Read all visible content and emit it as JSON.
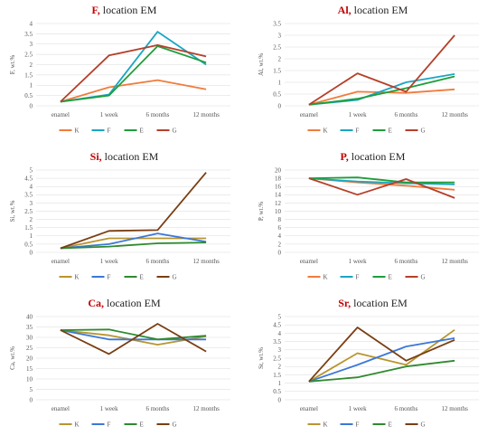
{
  "chart_data": [
    {
      "type": "line",
      "title_element": "F,",
      "title_rest": " location EM",
      "ylabel": "F, wt.%",
      "categories": [
        "enamel",
        "1 week",
        "6 months",
        "12 months"
      ],
      "ylim": [
        0,
        4
      ],
      "yticks": [
        "0",
        "0.5",
        "1",
        "1.5",
        "2",
        "2.5",
        "3",
        "3.5",
        "4"
      ],
      "series": [
        {
          "name": "K",
          "color": "#f07c3c",
          "values": [
            0.2,
            0.9,
            1.25,
            0.8
          ]
        },
        {
          "name": "F",
          "color": "#1aa6c4",
          "values": [
            0.2,
            0.55,
            3.6,
            2.0
          ]
        },
        {
          "name": "E",
          "color": "#1e9e3a",
          "values": [
            0.2,
            0.5,
            2.9,
            2.1
          ]
        },
        {
          "name": "G",
          "color": "#b5402a",
          "values": [
            0.2,
            2.45,
            2.95,
            2.4
          ]
        }
      ]
    },
    {
      "type": "line",
      "title_element": "Al,",
      "title_rest": " location EM",
      "ylabel": "Al, wt.%",
      "categories": [
        "enamel",
        "1 week",
        "6 months",
        "12 months"
      ],
      "ylim": [
        0,
        3.5
      ],
      "yticks": [
        "0",
        "0.5",
        "1",
        "1.5",
        "2",
        "2.5",
        "3",
        "3.5"
      ],
      "series": [
        {
          "name": "K",
          "color": "#f07c3c",
          "values": [
            0.05,
            0.6,
            0.55,
            0.7
          ]
        },
        {
          "name": "F",
          "color": "#1aa6c4",
          "values": [
            0.05,
            0.25,
            1.0,
            1.35
          ]
        },
        {
          "name": "E",
          "color": "#1e9e3a",
          "values": [
            0.05,
            0.3,
            0.75,
            1.25
          ]
        },
        {
          "name": "G",
          "color": "#b5402a",
          "values": [
            0.05,
            1.38,
            0.6,
            3.0
          ]
        }
      ]
    },
    {
      "type": "line",
      "title_element": "Si,",
      "title_rest": " location EM",
      "ylabel": "Si, wt.%",
      "categories": [
        "enamel",
        "1 week",
        "6 months",
        "12 months"
      ],
      "ylim": [
        0,
        5
      ],
      "yticks": [
        "0",
        "0.5",
        "1",
        "1.5",
        "2",
        "2.5",
        "3",
        "3.5",
        "4",
        "4.5",
        "5"
      ],
      "series": [
        {
          "name": "K",
          "color": "#b8962e",
          "values": [
            0.25,
            0.85,
            0.85,
            0.85
          ]
        },
        {
          "name": "F",
          "color": "#3b78d8",
          "values": [
            0.25,
            0.5,
            1.15,
            0.65
          ]
        },
        {
          "name": "E",
          "color": "#2f8a2f",
          "values": [
            0.25,
            0.35,
            0.55,
            0.6
          ]
        },
        {
          "name": "G",
          "color": "#7a3e12",
          "values": [
            0.25,
            1.3,
            1.35,
            4.85
          ]
        }
      ]
    },
    {
      "type": "line",
      "title_element": "P,",
      "title_rest": " location EM",
      "ylabel": "P, wt.%",
      "categories": [
        "enamel",
        "1 week",
        "6 months",
        "12 months"
      ],
      "ylim": [
        0,
        20
      ],
      "yticks": [
        "0",
        "2",
        "4",
        "6",
        "8",
        "10",
        "12",
        "14",
        "16",
        "18",
        "20"
      ],
      "series": [
        {
          "name": "K",
          "color": "#f07c3c",
          "values": [
            18.0,
            17.0,
            16.2,
            15.2
          ]
        },
        {
          "name": "F",
          "color": "#1aa6c4",
          "values": [
            18.0,
            17.2,
            16.8,
            16.5
          ]
        },
        {
          "name": "E",
          "color": "#1e9e3a",
          "values": [
            18.0,
            18.2,
            17.0,
            17.0
          ]
        },
        {
          "name": "G",
          "color": "#b5402a",
          "values": [
            18.0,
            14.0,
            17.8,
            13.2
          ]
        }
      ]
    },
    {
      "type": "line",
      "title_element": "Ca,",
      "title_rest": " location EM",
      "ylabel": "Ca, wt.%",
      "categories": [
        "enamel",
        "1 week",
        "6 months",
        "12 months"
      ],
      "ylim": [
        0,
        40
      ],
      "yticks": [
        "0",
        "5",
        "10",
        "15",
        "20",
        "25",
        "30",
        "35",
        "40"
      ],
      "series": [
        {
          "name": "K",
          "color": "#b8962e",
          "values": [
            33.5,
            31.0,
            26.5,
            30.5
          ]
        },
        {
          "name": "F",
          "color": "#3b78d8",
          "values": [
            33.5,
            29.0,
            29.0,
            29.0
          ]
        },
        {
          "name": "E",
          "color": "#2f8a2f",
          "values": [
            33.5,
            33.8,
            29.0,
            30.8
          ]
        },
        {
          "name": "G",
          "color": "#7a3e12",
          "values": [
            33.5,
            22.0,
            36.5,
            23.2
          ]
        }
      ]
    },
    {
      "type": "line",
      "title_element": "Sr,",
      "title_rest": " location EM",
      "ylabel": "Sr, wt.%",
      "categories": [
        "enamel",
        "1 week",
        "6 months",
        "12 months"
      ],
      "ylim": [
        0,
        5
      ],
      "yticks": [
        "0",
        "0.5",
        "1",
        "1.5",
        "2",
        "2.5",
        "3",
        "3.5",
        "4",
        "4.5",
        "5"
      ],
      "series": [
        {
          "name": "K",
          "color": "#b8962e",
          "values": [
            1.1,
            2.8,
            2.1,
            4.2
          ]
        },
        {
          "name": "F",
          "color": "#3b78d8",
          "values": [
            1.1,
            2.1,
            3.2,
            3.7
          ]
        },
        {
          "name": "E",
          "color": "#2f8a2f",
          "values": [
            1.1,
            1.35,
            2.0,
            2.35
          ]
        },
        {
          "name": "G",
          "color": "#7a3e12",
          "values": [
            1.1,
            4.35,
            2.35,
            3.6
          ]
        }
      ]
    }
  ]
}
